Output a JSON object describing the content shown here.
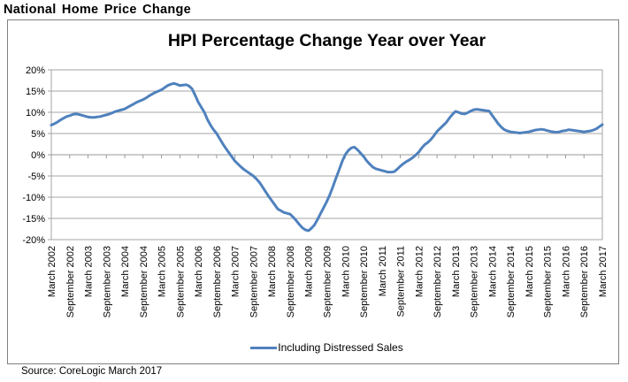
{
  "header": {
    "title": "National Home Price Change"
  },
  "footer": {
    "source": "Source: CoreLogic March 2017"
  },
  "colors": {
    "line": "#4F81BD",
    "gridline": "#A6A6A6",
    "zero_axis": "#999999",
    "chart_border": "#808080",
    "text": "#000000"
  },
  "chart_data": {
    "type": "line",
    "title": "HPI Percentage Change Year over Year",
    "xlabel": "",
    "ylabel": "",
    "x_frequency": "monthly",
    "x_start": "March 2002",
    "x_end": "March 2017",
    "points_per_tick": 6,
    "x_tick_labels": [
      "March 2002",
      "September 2002",
      "March 2003",
      "September 2003",
      "March 2004",
      "September 2004",
      "March 2005",
      "September 2005",
      "March 2006",
      "September 2006",
      "March 2007",
      "September 2007",
      "March 2008",
      "September 2008",
      "March 2009",
      "September 2009",
      "March 2010",
      "September 2010",
      "March 2011",
      "September 2011",
      "March 2012",
      "September 2012",
      "March 2013",
      "September 2013",
      "March 2014",
      "September 2014",
      "March 2015",
      "September 2015",
      "March 2016",
      "September 2016",
      "March 2017"
    ],
    "ylim": [
      -20,
      20
    ],
    "ytick_step": 5,
    "y_tick_labels": [
      "20%",
      "15%",
      "10%",
      "5%",
      "0%",
      "-5%",
      "-10%",
      "-15%",
      "-20%"
    ],
    "grid": true,
    "legend_position": "bottom",
    "series": [
      {
        "name": "Including Distressed Sales",
        "color": "#4F81BD",
        "values": [
          7.0,
          7.3,
          7.7,
          8.2,
          8.6,
          9.0,
          9.2,
          9.5,
          9.6,
          9.5,
          9.3,
          9.1,
          8.9,
          8.8,
          8.8,
          8.9,
          9.0,
          9.2,
          9.4,
          9.6,
          9.9,
          10.2,
          10.4,
          10.6,
          10.8,
          11.2,
          11.6,
          12.0,
          12.4,
          12.7,
          13.0,
          13.4,
          13.9,
          14.3,
          14.7,
          15.0,
          15.3,
          15.8,
          16.3,
          16.6,
          16.8,
          16.6,
          16.3,
          16.4,
          16.5,
          16.2,
          15.5,
          14.0,
          12.4,
          11.2,
          10.0,
          8.3,
          7.0,
          5.9,
          5.0,
          3.8,
          2.6,
          1.5,
          0.5,
          -0.5,
          -1.5,
          -2.2,
          -2.9,
          -3.5,
          -4.0,
          -4.5,
          -5.0,
          -5.7,
          -6.5,
          -7.6,
          -8.7,
          -9.8,
          -10.8,
          -11.8,
          -12.8,
          -13.2,
          -13.6,
          -13.8,
          -14.0,
          -14.7,
          -15.5,
          -16.4,
          -17.2,
          -17.7,
          -17.9,
          -17.3,
          -16.5,
          -15.2,
          -13.8,
          -12.4,
          -11.0,
          -9.4,
          -7.5,
          -5.5,
          -3.6,
          -1.6,
          0.0,
          1.0,
          1.6,
          1.8,
          1.2,
          0.4,
          -0.4,
          -1.4,
          -2.2,
          -2.9,
          -3.3,
          -3.5,
          -3.7,
          -3.9,
          -4.1,
          -4.1,
          -4.0,
          -3.4,
          -2.7,
          -2.1,
          -1.6,
          -1.2,
          -0.7,
          -0.1,
          0.6,
          1.6,
          2.4,
          2.9,
          3.6,
          4.5,
          5.5,
          6.2,
          6.9,
          7.6,
          8.6,
          9.5,
          10.2,
          10.0,
          9.7,
          9.6,
          9.9,
          10.3,
          10.6,
          10.7,
          10.6,
          10.5,
          10.4,
          10.3,
          9.3,
          8.3,
          7.3,
          6.5,
          5.9,
          5.6,
          5.4,
          5.3,
          5.2,
          5.1,
          5.2,
          5.3,
          5.4,
          5.6,
          5.8,
          5.9,
          6.0,
          5.9,
          5.7,
          5.5,
          5.4,
          5.3,
          5.4,
          5.6,
          5.7,
          5.9,
          5.8,
          5.7,
          5.6,
          5.5,
          5.4,
          5.5,
          5.6,
          5.8,
          6.1,
          6.6,
          7.1
        ]
      }
    ]
  }
}
